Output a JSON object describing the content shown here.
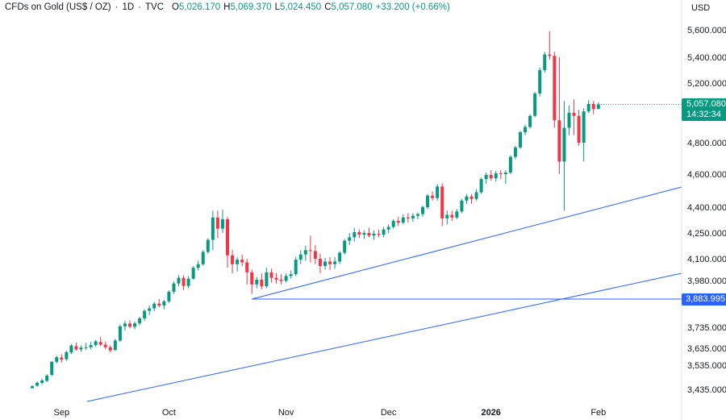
{
  "header": {
    "symbol": "CFDs on Gold (US$ / OZ)",
    "interval": "1D",
    "source": "TVC",
    "o_label": "O",
    "o_value": "5,026.170",
    "h_label": "H",
    "h_value": "5,069.370",
    "l_label": "L",
    "l_value": "5,024.450",
    "c_label": "C",
    "c_value": "5,057.080",
    "change": "+33.200 (+0.66%)"
  },
  "currency": "USD",
  "price_tag": {
    "price": "5,057.080",
    "countdown": "14:32:34"
  },
  "level_tag": {
    "price": "3,883.995"
  },
  "colors": {
    "up": "#089981",
    "down": "#F23645",
    "line": "#2962FF",
    "text": "#131722"
  },
  "chart_data": {
    "type": "candlestick",
    "title": "CFDs on Gold (US$ / OZ) · 1D · TVC",
    "y_tick_labels": [
      "5,600.000",
      "5,400.000",
      "5,200.000",
      "4,800.000",
      "4,600.000",
      "4,400.000",
      "4,250.000",
      "4,100.000",
      "3,980.000",
      "3,735.000",
      "3,635.000",
      "3,535.000",
      "3,435.000"
    ],
    "x_tick_labels": [
      "Sep",
      "Oct",
      "Nov",
      "Dec",
      "2026",
      "Feb"
    ],
    "x_bold": [
      false,
      false,
      false,
      false,
      true,
      false
    ],
    "candles": [
      [
        3440,
        3452,
        3438,
        3448
      ],
      [
        3450,
        3468,
        3446,
        3462
      ],
      [
        3462,
        3480,
        3455,
        3472
      ],
      [
        3470,
        3498,
        3465,
        3492
      ],
      [
        3495,
        3560,
        3490,
        3555
      ],
      [
        3555,
        3590,
        3545,
        3582
      ],
      [
        3580,
        3600,
        3550,
        3568
      ],
      [
        3570,
        3620,
        3560,
        3612
      ],
      [
        3610,
        3655,
        3600,
        3648
      ],
      [
        3645,
        3662,
        3620,
        3628
      ],
      [
        3628,
        3648,
        3615,
        3638
      ],
      [
        3638,
        3660,
        3625,
        3640
      ],
      [
        3640,
        3665,
        3628,
        3650
      ],
      [
        3650,
        3675,
        3642,
        3668
      ],
      [
        3665,
        3690,
        3645,
        3652
      ],
      [
        3652,
        3668,
        3630,
        3640
      ],
      [
        3640,
        3650,
        3610,
        3622
      ],
      [
        3625,
        3680,
        3618,
        3672
      ],
      [
        3672,
        3750,
        3665,
        3740
      ],
      [
        3740,
        3770,
        3720,
        3755
      ],
      [
        3755,
        3772,
        3730,
        3738
      ],
      [
        3738,
        3765,
        3725,
        3756
      ],
      [
        3756,
        3790,
        3745,
        3782
      ],
      [
        3782,
        3830,
        3770,
        3822
      ],
      [
        3822,
        3850,
        3800,
        3835
      ],
      [
        3835,
        3870,
        3820,
        3860
      ],
      [
        3860,
        3885,
        3840,
        3850
      ],
      [
        3850,
        3880,
        3830,
        3872
      ],
      [
        3872,
        3930,
        3862,
        3922
      ],
      [
        3922,
        3975,
        3910,
        3965
      ],
      [
        3965,
        4010,
        3950,
        3995
      ],
      [
        3995,
        4010,
        3930,
        3952
      ],
      [
        3952,
        4005,
        3940,
        3990
      ],
      [
        3990,
        4060,
        3985,
        4050
      ],
      [
        4050,
        4090,
        4035,
        4070
      ],
      [
        4070,
        4150,
        4062,
        4140
      ],
      [
        4140,
        4220,
        4130,
        4210
      ],
      [
        4210,
        4380,
        4150,
        4340
      ],
      [
        4340,
        4380,
        4220,
        4275
      ],
      [
        4275,
        4385,
        4250,
        4330
      ],
      [
        4330,
        4345,
        4050,
        4120
      ],
      [
        4120,
        4150,
        4020,
        4070
      ],
      [
        4070,
        4110,
        4030,
        4095
      ],
      [
        4095,
        4125,
        4060,
        4080
      ],
      [
        4080,
        4100,
        3960,
        4025
      ],
      [
        4025,
        4040,
        3910,
        3960
      ],
      [
        3960,
        4000,
        3940,
        3985
      ],
      [
        3985,
        4020,
        3935,
        3950
      ],
      [
        3950,
        4050,
        3940,
        4025
      ],
      [
        4025,
        4045,
        3970,
        3995
      ],
      [
        3995,
        4020,
        3965,
        3985
      ],
      [
        3985,
        4015,
        3960,
        3978
      ],
      [
        3978,
        4020,
        3970,
        4005
      ],
      [
        4005,
        4035,
        3990,
        4015
      ],
      [
        4015,
        4110,
        4005,
        4095
      ],
      [
        4095,
        4150,
        4070,
        4125
      ],
      [
        4125,
        4175,
        4090,
        4150
      ],
      [
        4150,
        4235,
        4080,
        4145
      ],
      [
        4145,
        4180,
        4070,
        4100
      ],
      [
        4100,
        4130,
        4020,
        4060
      ],
      [
        4060,
        4105,
        4040,
        4085
      ],
      [
        4085,
        4110,
        4040,
        4070
      ],
      [
        4070,
        4110,
        4045,
        4085
      ],
      [
        4085,
        4145,
        4070,
        4135
      ],
      [
        4135,
        4215,
        4125,
        4205
      ],
      [
        4205,
        4250,
        4180,
        4225
      ],
      [
        4225,
        4280,
        4200,
        4255
      ],
      [
        4255,
        4270,
        4220,
        4240
      ],
      [
        4240,
        4265,
        4215,
        4250
      ],
      [
        4250,
        4280,
        4225,
        4235
      ],
      [
        4235,
        4265,
        4210,
        4245
      ],
      [
        4245,
        4270,
        4225,
        4240
      ],
      [
        4240,
        4285,
        4225,
        4270
      ],
      [
        4270,
        4300,
        4250,
        4285
      ],
      [
        4285,
        4330,
        4275,
        4320
      ],
      [
        4320,
        4345,
        4290,
        4310
      ],
      [
        4310,
        4360,
        4300,
        4340
      ],
      [
        4340,
        4365,
        4310,
        4335
      ],
      [
        4335,
        4365,
        4315,
        4350
      ],
      [
        4350,
        4370,
        4330,
        4360
      ],
      [
        4360,
        4410,
        4345,
        4400
      ],
      [
        4400,
        4480,
        4390,
        4470
      ],
      [
        4470,
        4495,
        4440,
        4455
      ],
      [
        4455,
        4540,
        4440,
        4525
      ],
      [
        4525,
        4545,
        4290,
        4335
      ],
      [
        4335,
        4380,
        4300,
        4355
      ],
      [
        4355,
        4380,
        4320,
        4340
      ],
      [
        4340,
        4390,
        4330,
        4375
      ],
      [
        4375,
        4450,
        4365,
        4440
      ],
      [
        4440,
        4480,
        4420,
        4465
      ],
      [
        4465,
        4480,
        4420,
        4450
      ],
      [
        4450,
        4510,
        4440,
        4490
      ],
      [
        4490,
        4580,
        4480,
        4570
      ],
      [
        4570,
        4610,
        4540,
        4595
      ],
      [
        4595,
        4625,
        4560,
        4575
      ],
      [
        4575,
        4620,
        4555,
        4605
      ],
      [
        4605,
        4625,
        4570,
        4600
      ],
      [
        4600,
        4625,
        4540,
        4610
      ],
      [
        4610,
        4720,
        4600,
        4710
      ],
      [
        4710,
        4780,
        4695,
        4770
      ],
      [
        4770,
        4880,
        4760,
        4870
      ],
      [
        4870,
        4920,
        4850,
        4905
      ],
      [
        4905,
        4990,
        4895,
        4980
      ],
      [
        4980,
        5140,
        4970,
        5130
      ],
      [
        5130,
        5320,
        5110,
        5300
      ],
      [
        5300,
        5440,
        5280,
        5420
      ],
      [
        5420,
        5590,
        5380,
        5410
      ],
      [
        5410,
        5440,
        4900,
        4950
      ],
      [
        4950,
        5400,
        4600,
        4680
      ],
      [
        4680,
        5080,
        4380,
        4900
      ],
      [
        4900,
        5050,
        4850,
        5000
      ],
      [
        5000,
        5090,
        4850,
        4980
      ],
      [
        4980,
        5020,
        4780,
        4800
      ],
      [
        4800,
        5030,
        4680,
        5010
      ],
      [
        5010,
        5085,
        5000,
        5060
      ],
      [
        5060,
        5080,
        4990,
        5025
      ],
      [
        5026.17,
        5069.37,
        5024.45,
        5057.08
      ]
    ],
    "trendlines": [
      {
        "name": "rising-support-upper",
        "from_index": 45,
        "to_index": 131
      },
      {
        "name": "rising-support-lower",
        "from_index": 11,
        "to_index": 131
      }
    ],
    "horizontal_levels": [
      {
        "name": "support-level",
        "value": 3883.995
      }
    ]
  }
}
